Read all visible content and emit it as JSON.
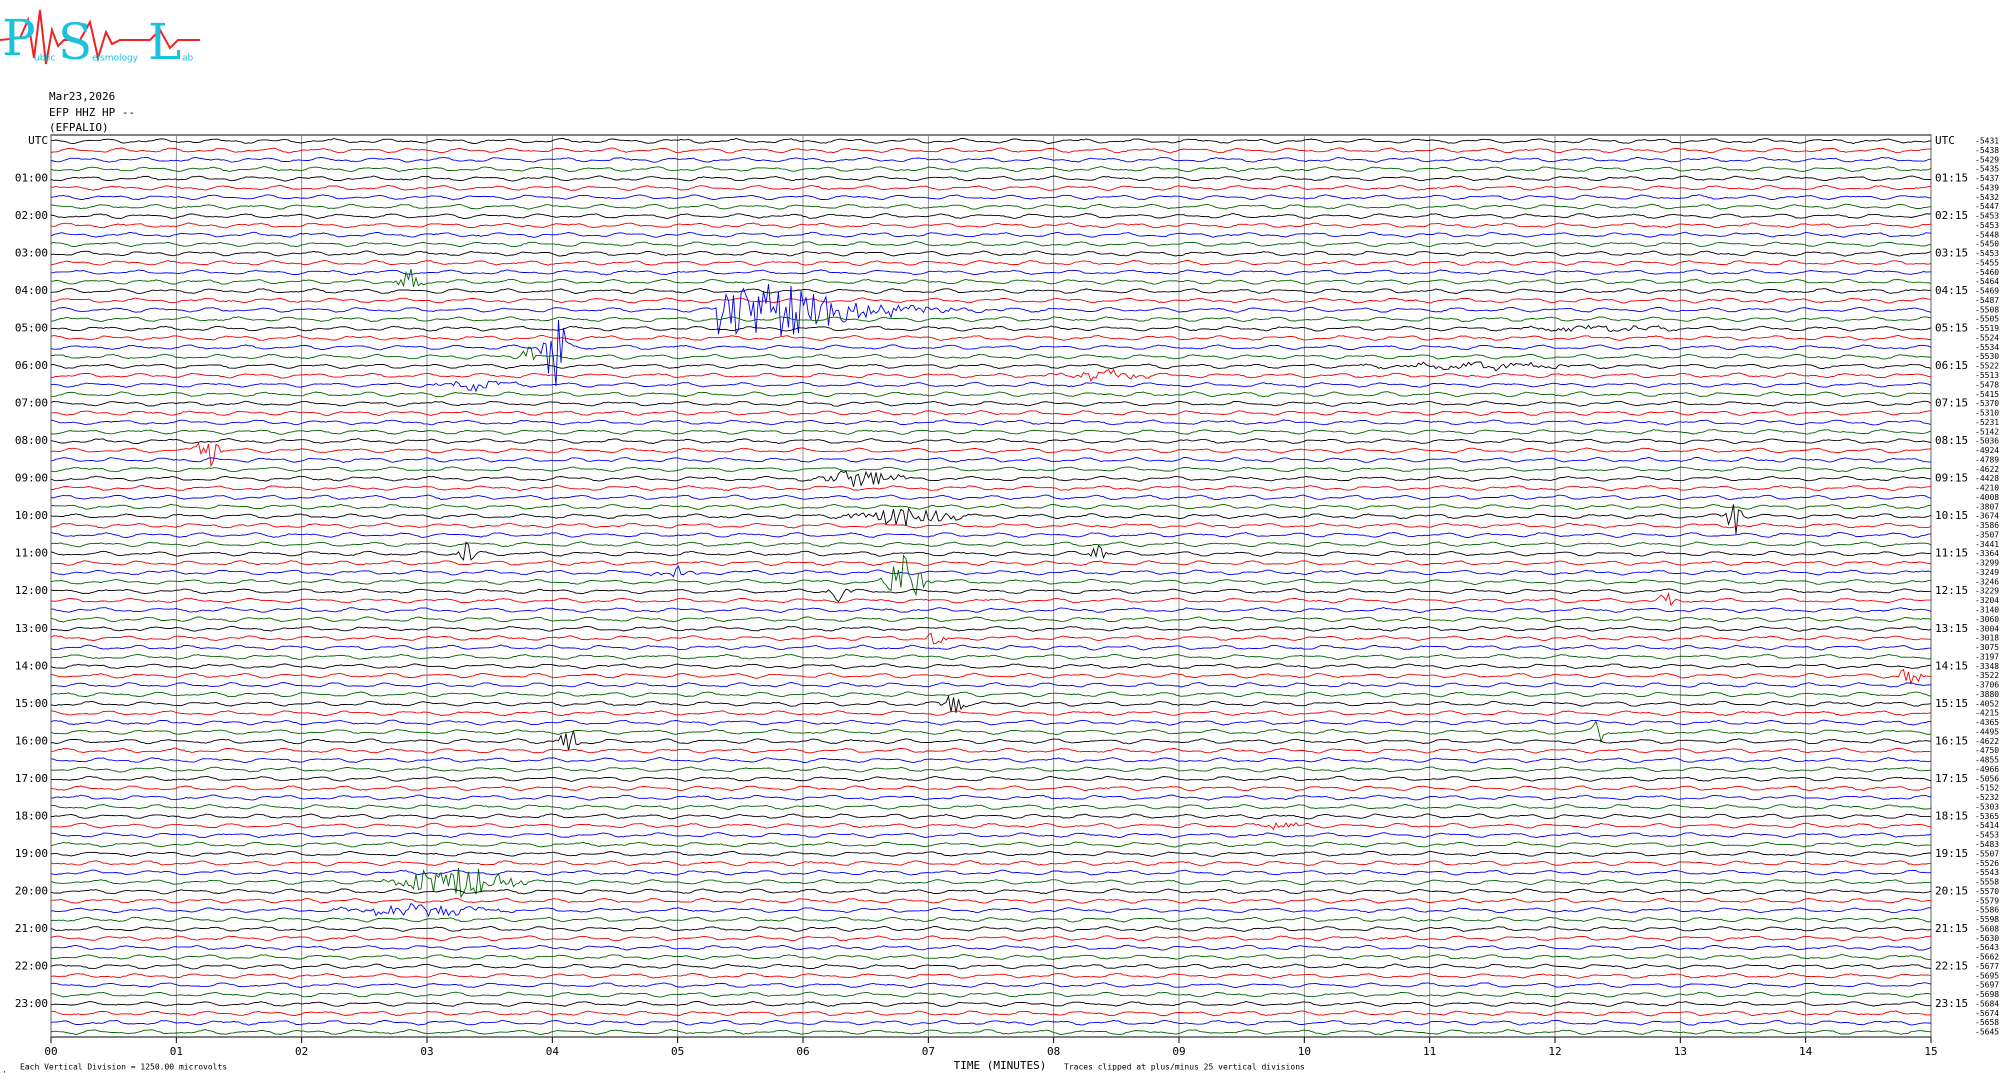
{
  "header": {
    "logo": {
      "p": "P",
      "s": "S",
      "l": "L",
      "p_small": "ublic",
      "s_small": "eismology",
      "l_small": "ab"
    },
    "date": "Mar23,2026",
    "channel": "EFP HHZ HP --",
    "station": "(EFPALIO)"
  },
  "chart_data": {
    "type": "helicorder",
    "xlabel": "TIME (MINUTES)",
    "xlim": [
      0,
      15
    ],
    "xticks": [
      {
        "value": 0,
        "label": "00"
      },
      {
        "value": 1,
        "label": "01"
      },
      {
        "value": 2,
        "label": "02"
      },
      {
        "value": 3,
        "label": "03"
      },
      {
        "value": 4,
        "label": "04"
      },
      {
        "value": 5,
        "label": "05"
      },
      {
        "value": 6,
        "label": "06"
      },
      {
        "value": 7,
        "label": "07"
      },
      {
        "value": 8,
        "label": "08"
      },
      {
        "value": 9,
        "label": "09"
      },
      {
        "value": 10,
        "label": "10"
      },
      {
        "value": 11,
        "label": "11"
      },
      {
        "value": 12,
        "label": "12"
      },
      {
        "value": 13,
        "label": "13"
      },
      {
        "value": 14,
        "label": "14"
      },
      {
        "value": 15,
        "label": "15"
      }
    ],
    "grid": true,
    "trace_colors": [
      "#000000",
      "#ee0000",
      "#0000ee",
      "#006400"
    ],
    "left_labels": [
      "UTC",
      "01:00",
      "02:00",
      "03:00",
      "04:00",
      "05:00",
      "06:00",
      "07:00",
      "08:00",
      "09:00",
      "10:00",
      "11:00",
      "12:00",
      "13:00",
      "14:00",
      "15:00",
      "16:00",
      "17:00",
      "18:00",
      "19:00",
      "20:00",
      "21:00",
      "22:00",
      "23:00"
    ],
    "right_labels": [
      "UTC",
      "01:15",
      "02:15",
      "03:15",
      "04:15",
      "05:15",
      "06:15",
      "07:15",
      "08:15",
      "09:15",
      "10:15",
      "11:15",
      "12:15",
      "13:15",
      "14:15",
      "15:15",
      "16:15",
      "17:15",
      "18:15",
      "19:15",
      "20:15",
      "21:15",
      "22:15",
      "23:15"
    ],
    "trace_offsets": [
      -5431,
      -5438,
      -5429,
      -5435,
      -5437,
      -5439,
      -5432,
      -5447,
      -5453,
      -5453,
      -5448,
      -5450,
      -5453,
      -5455,
      -5460,
      -5464,
      -5469,
      -5487,
      -5508,
      -5505,
      -5519,
      -5524,
      -5534,
      -5530,
      -5522,
      -5513,
      -5478,
      -5415,
      -5370,
      -5310,
      -5231,
      -5142,
      -5036,
      -4924,
      -4789,
      -4622,
      -4428,
      -4210,
      -4008,
      -3807,
      -3674,
      -3586,
      -3507,
      -3441,
      -3364,
      -3299,
      -3249,
      -3246,
      -3229,
      -3204,
      -3140,
      -3060,
      -3004,
      -3018,
      -3075,
      -3197,
      -3348,
      -3522,
      -3706,
      -3880,
      -4052,
      -4215,
      -4365,
      -4495,
      -4622,
      -4750,
      -4855,
      -4966,
      -5056,
      -5152,
      -5232,
      -5303,
      -5365,
      -5414,
      -5453,
      -5483,
      -5507,
      -5526,
      -5543,
      -5558,
      -5570,
      -5579,
      -5586,
      -5598,
      -5608,
      -5630,
      -5643,
      -5662,
      -5677,
      -5695,
      -5697,
      -5698,
      -5684,
      -5674,
      -5658,
      -5645
    ],
    "scale_note": "Each Vertical Division = 1250.00 microvolts",
    "clip_note": "Traces clipped at plus/minus 25 vertical divisions"
  }
}
